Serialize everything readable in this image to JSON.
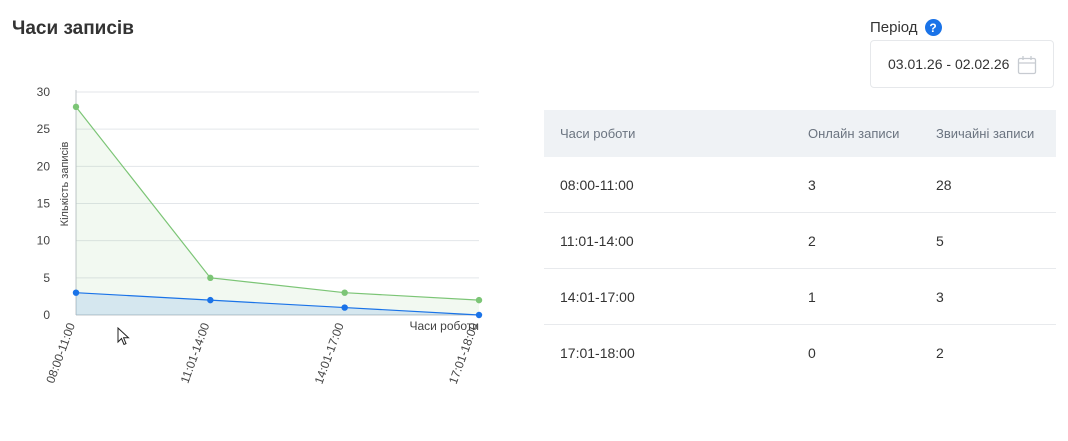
{
  "page": {
    "title": "Часи записів"
  },
  "period": {
    "label": "Період",
    "help_icon": "?",
    "date_range": "03.01.26 - 02.02.26"
  },
  "chart_data": {
    "type": "area",
    "categories": [
      "08:00-11:00",
      "11:01-14:00",
      "14:01-17:00",
      "17:01-18:00"
    ],
    "series": [
      {
        "values": [
          28,
          5,
          3,
          2
        ],
        "color": "#7cc576"
      },
      {
        "values": [
          3,
          2,
          1,
          0
        ],
        "color": "#1a73e8"
      }
    ],
    "xlabel": "Часи роботи",
    "ylabel": "Кількість записів",
    "ylim": [
      0,
      30
    ],
    "yticks": [
      0,
      5,
      10,
      15,
      20,
      25,
      30
    ],
    "grid": true
  },
  "table": {
    "headers": [
      "Часи роботи",
      "Онлайн записи",
      "Звичайні записи"
    ],
    "rows": [
      [
        "08:00-11:00",
        "3",
        "28"
      ],
      [
        "11:01-14:00",
        "2",
        "5"
      ],
      [
        "14:01-17:00",
        "1",
        "3"
      ],
      [
        "17:01-18:00",
        "0",
        "2"
      ]
    ]
  }
}
